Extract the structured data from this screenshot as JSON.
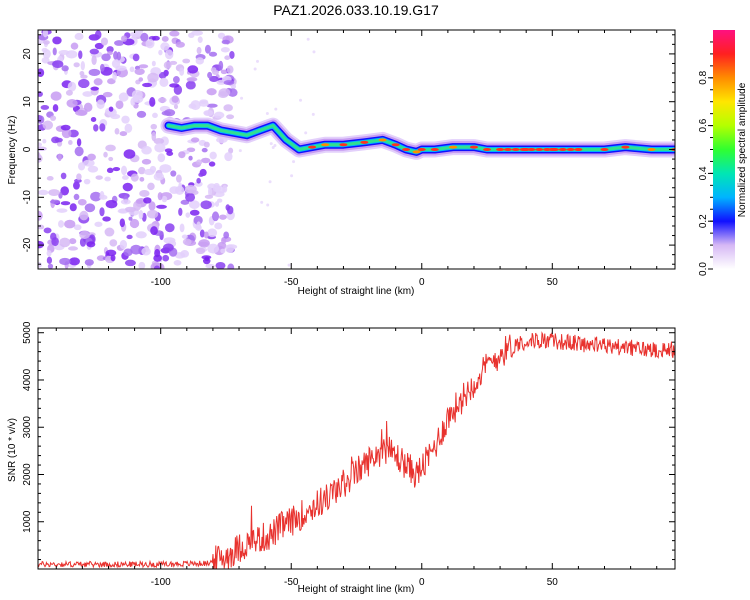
{
  "page_title": "PAZ1.2026.033.10.19.G17",
  "chart_data": [
    {
      "type": "heatmap",
      "title": "PAZ1.2026.033.10.19.G17",
      "xlabel": "Height of straight line (km)",
      "ylabel": "Frequency (Hz)",
      "xlim": [
        -147,
        97
      ],
      "ylim": [
        -25,
        25
      ],
      "xticks": [
        -100,
        -50,
        0,
        50
      ],
      "yticks": [
        -20,
        -10,
        0,
        10,
        20
      ],
      "xtick_labels": [
        "-100",
        "-50",
        "0",
        "50"
      ],
      "ytick_labels": [
        "-20",
        "-10",
        "0",
        "10",
        "20"
      ],
      "noise_region": {
        "x_range": [
          -147,
          -72
        ],
        "y_range": [
          -25,
          25
        ]
      },
      "frequency_track": {
        "x": [
          -97,
          -92,
          -87,
          -82,
          -77,
          -72,
          -67,
          -62,
          -57,
          -52,
          -47,
          -42,
          -37,
          -30,
          -22,
          -15,
          -10,
          -6,
          -2,
          0,
          5,
          12,
          20,
          25,
          30,
          40,
          50,
          60,
          70,
          78,
          88,
          97
        ],
        "y": [
          5,
          4.5,
          5,
          5,
          4,
          3.5,
          3,
          4,
          5,
          2,
          0,
          0.5,
          1,
          1,
          1.5,
          2,
          1,
          0,
          -0.5,
          0,
          0,
          0.5,
          0.5,
          0,
          0,
          0,
          0,
          0,
          0,
          0.5,
          0,
          0
        ]
      },
      "colorbar": {
        "label": "Normalized spectral amplitude",
        "range": [
          0,
          1
        ],
        "ticks": [
          0.0,
          0.2,
          0.4,
          0.6,
          0.8
        ],
        "tick_labels": [
          "0.0",
          "0.2",
          "0.4",
          "0.6",
          "0.8"
        ]
      }
    },
    {
      "type": "line",
      "xlabel": "Height of straight line (km)",
      "ylabel": "SNR (10 * v/v)",
      "xlim": [
        -147,
        97
      ],
      "ylim": [
        0,
        5100
      ],
      "xticks": [
        -100,
        -50,
        0,
        50
      ],
      "yticks": [
        1000,
        2000,
        3000,
        4000,
        5000
      ],
      "xtick_labels": [
        "-100",
        "-50",
        "0",
        "50"
      ],
      "ytick_labels": [
        "1000",
        "2000",
        "3000",
        "4000",
        "5000"
      ],
      "color": "#e8322e",
      "series": [
        {
          "name": "SNR",
          "x": [
            -147,
            -120,
            -100,
            -82,
            -78,
            -74,
            -70,
            -66,
            -62,
            -58,
            -54,
            -50,
            -46,
            -42,
            -38,
            -34,
            -30,
            -26,
            -22,
            -18,
            -14,
            -10,
            -6,
            -2,
            2,
            6,
            10,
            14,
            18,
            22,
            26,
            30,
            34,
            38,
            45,
            55,
            65,
            75,
            85,
            97
          ],
          "y": [
            100,
            100,
            100,
            120,
            200,
            300,
            450,
            550,
            650,
            700,
            900,
            1000,
            1150,
            1300,
            1450,
            1600,
            1800,
            2000,
            2200,
            2400,
            2550,
            2400,
            2200,
            2000,
            2300,
            2700,
            3200,
            3500,
            3800,
            4100,
            4350,
            4550,
            4700,
            4800,
            4850,
            4800,
            4750,
            4700,
            4650,
            4650
          ]
        }
      ]
    }
  ]
}
